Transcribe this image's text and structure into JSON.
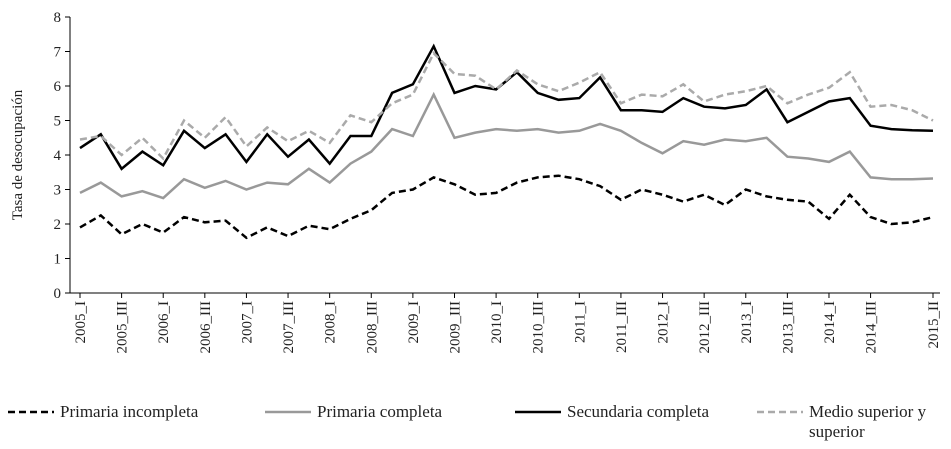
{
  "chart_data": {
    "type": "line",
    "y_label": "Tasa de desocupación",
    "categories": [
      "2005_I",
      null,
      "2005_III",
      null,
      "2006_I",
      null,
      "2006_III",
      null,
      "2007_I",
      null,
      "2007_III",
      null,
      "2008_I",
      null,
      "2008_III",
      null,
      "2009_I",
      null,
      "2009_III",
      null,
      "2010_I",
      null,
      "2010_III",
      null,
      "2011_I",
      null,
      "2011_III",
      null,
      "2012_I",
      null,
      "2012_III",
      null,
      "2013_I",
      null,
      "2013_III",
      null,
      "2014_I",
      null,
      "2014_III",
      null,
      null,
      "2015_II"
    ],
    "ylim": [
      0,
      8
    ],
    "yticks": [
      0,
      1,
      2,
      3,
      4,
      5,
      6,
      7,
      8
    ],
    "series": [
      {
        "name": "Primaria incompleta",
        "color": "#000000",
        "line_style": "dashed",
        "values": [
          1.9,
          2.25,
          1.7,
          2.0,
          1.75,
          2.2,
          2.05,
          2.1,
          1.6,
          1.9,
          1.65,
          1.95,
          1.85,
          2.15,
          2.4,
          2.9,
          3.0,
          3.35,
          3.15,
          2.85,
          2.9,
          3.2,
          3.35,
          3.4,
          3.3,
          3.1,
          2.7,
          3.0,
          2.85,
          2.65,
          2.85,
          2.55,
          3.0,
          2.8,
          2.7,
          2.65,
          2.15,
          2.85,
          2.2,
          2.0,
          2.05,
          2.2
        ]
      },
      {
        "name": "Primaria completa",
        "color": "#999999",
        "line_style": "solid",
        "values": [
          2.9,
          3.2,
          2.8,
          2.95,
          2.75,
          3.3,
          3.05,
          3.25,
          3.0,
          3.2,
          3.15,
          3.6,
          3.2,
          3.75,
          4.1,
          4.75,
          4.55,
          5.75,
          4.5,
          4.65,
          4.75,
          4.7,
          4.75,
          4.65,
          4.7,
          4.9,
          4.7,
          4.35,
          4.05,
          4.4,
          4.3,
          4.45,
          4.4,
          4.5,
          3.95,
          3.9,
          3.8,
          4.1,
          3.35,
          3.3,
          3.3,
          3.32
        ]
      },
      {
        "name": "Secundaria completa",
        "color": "#000000",
        "line_style": "solid",
        "values": [
          4.2,
          4.6,
          3.6,
          4.1,
          3.7,
          4.7,
          4.2,
          4.6,
          3.8,
          4.6,
          3.95,
          4.45,
          3.75,
          4.55,
          4.55,
          5.8,
          6.05,
          7.15,
          5.8,
          6.0,
          5.9,
          6.4,
          5.8,
          5.6,
          5.65,
          6.25,
          5.3,
          5.3,
          5.25,
          5.65,
          5.4,
          5.35,
          5.45,
          5.9,
          4.95,
          5.25,
          5.55,
          5.65,
          4.85,
          4.75,
          4.72,
          4.7
        ]
      },
      {
        "name": "Medio superior y superior",
        "color": "#aaaaaa",
        "line_style": "dashed",
        "values": [
          4.45,
          4.55,
          4.0,
          4.5,
          3.9,
          5.0,
          4.5,
          5.1,
          4.25,
          4.8,
          4.4,
          4.7,
          4.35,
          5.15,
          4.95,
          5.5,
          5.75,
          6.95,
          6.35,
          6.3,
          5.9,
          6.45,
          6.05,
          5.85,
          6.1,
          6.4,
          5.5,
          5.75,
          5.7,
          6.05,
          5.55,
          5.75,
          5.85,
          6.0,
          5.5,
          5.75,
          5.95,
          6.4,
          5.4,
          5.45,
          5.3,
          5.0
        ]
      }
    ]
  }
}
